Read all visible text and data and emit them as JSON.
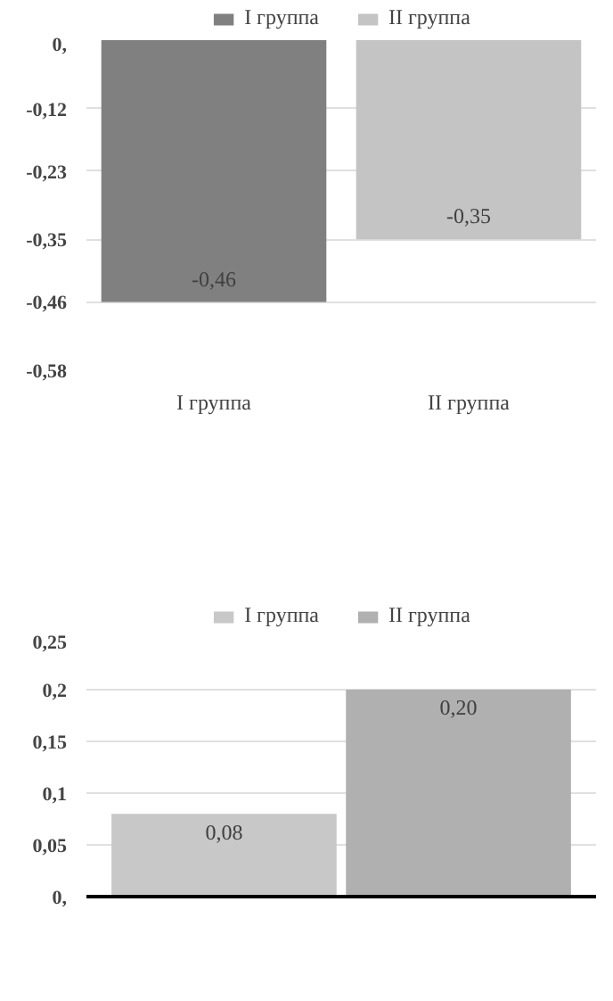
{
  "chart_data": [
    {
      "type": "bar",
      "categories": [
        "I группа",
        "II группа"
      ],
      "series": [
        {
          "name": "I группа",
          "color": "#808080",
          "values": [
            -0.46,
            null
          ],
          "value_labels": [
            "-0,46",
            null
          ]
        },
        {
          "name": "II группа",
          "color": "#c4c4c4",
          "values": [
            null,
            -0.35
          ],
          "value_labels": [
            null,
            "-0,35"
          ]
        }
      ],
      "ylim": [
        -0.58,
        0
      ],
      "yticks": [
        {
          "value": 0,
          "label": "0,"
        },
        {
          "value": -0.12,
          "label": "-0,12"
        },
        {
          "value": -0.23,
          "label": "-0,23"
        },
        {
          "value": -0.35,
          "label": "-0,35"
        },
        {
          "value": -0.46,
          "label": "-0,46"
        },
        {
          "value": -0.58,
          "label": "-0,58"
        }
      ],
      "grid": "y",
      "legend": "top"
    },
    {
      "type": "bar",
      "categories": [
        null
      ],
      "series": [
        {
          "name": "I группа",
          "color": "#c8c8c8",
          "values": [
            0.08
          ],
          "value_labels": [
            "0,08"
          ]
        },
        {
          "name": "II группа",
          "color": "#b0b0b0",
          "values": [
            0.2
          ],
          "value_labels": [
            "0,20"
          ]
        }
      ],
      "ylim": [
        0,
        0.25
      ],
      "yticks": [
        {
          "value": 0,
          "label": "0,"
        },
        {
          "value": 0.05,
          "label": "0,05"
        },
        {
          "value": 0.1,
          "label": "0,1"
        },
        {
          "value": 0.15,
          "label": "0,15"
        },
        {
          "value": 0.2,
          "label": "0,2"
        },
        {
          "value": 0.25,
          "label": "0,25"
        }
      ],
      "grid": "y",
      "legend": "top"
    }
  ]
}
